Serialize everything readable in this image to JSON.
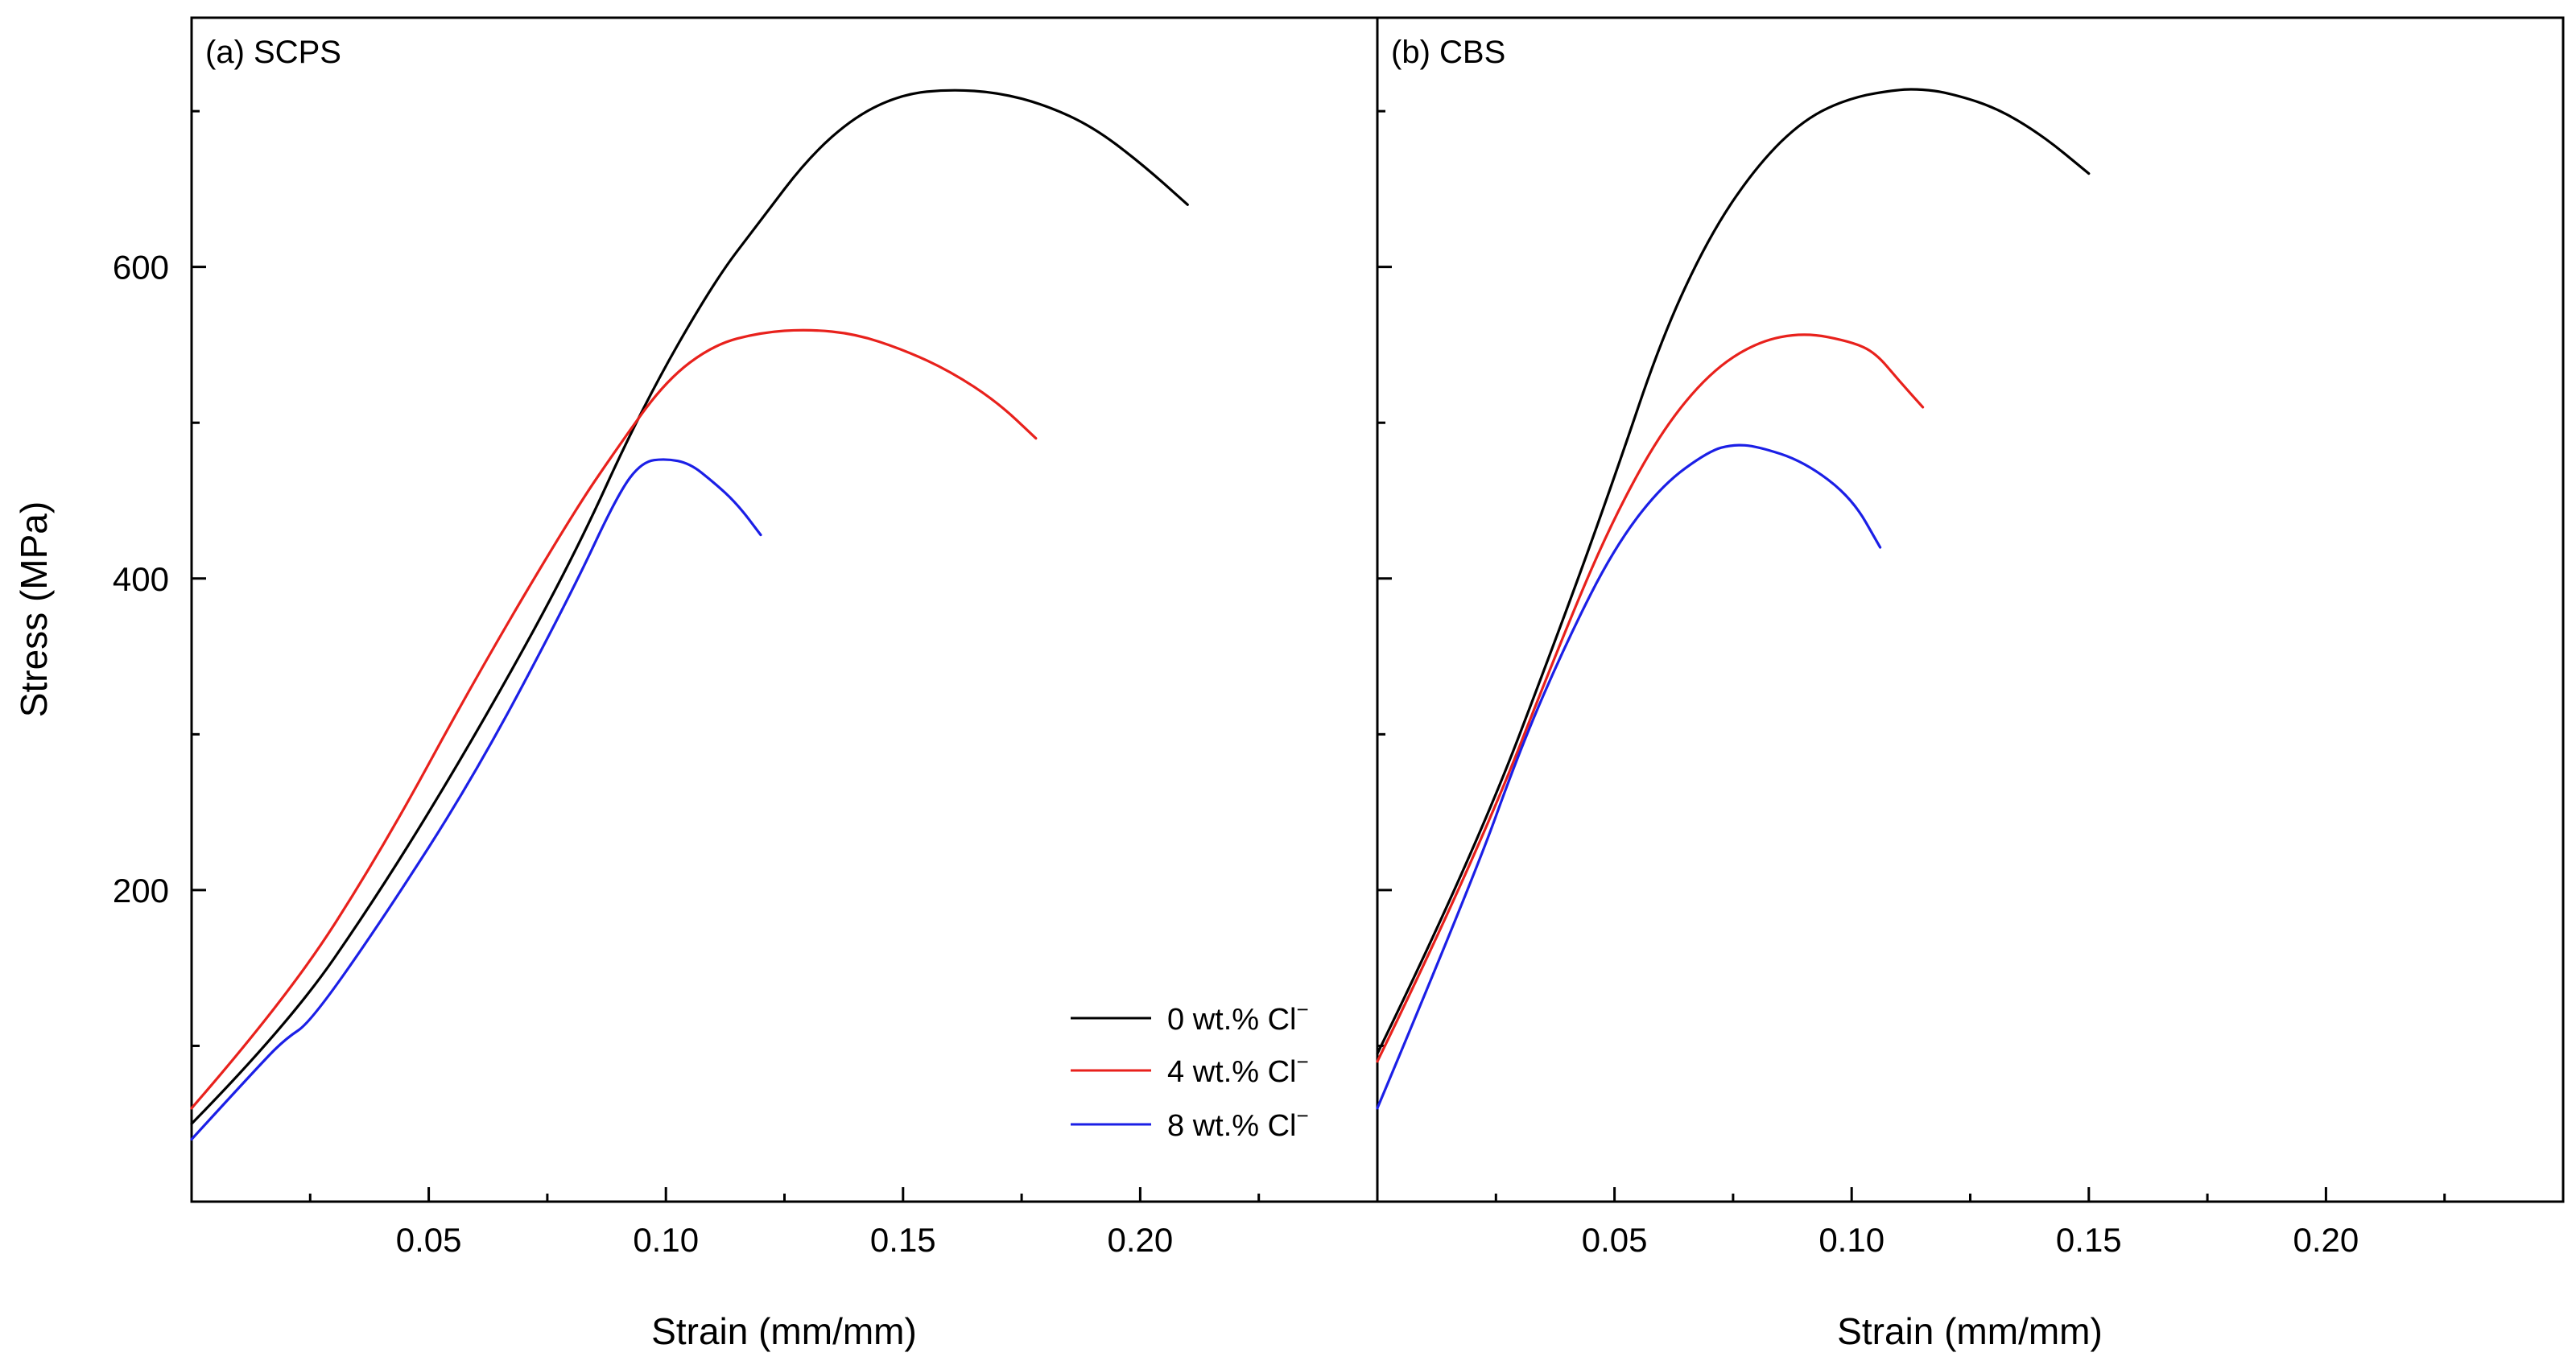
{
  "y_axis": {
    "label": "Stress (MPa)",
    "range": [
      0,
      760
    ],
    "major_ticks": [
      200,
      400,
      600
    ],
    "minor_ticks": [
      100,
      300,
      500,
      700
    ]
  },
  "legend": {
    "placement": "bottom-right of panel (a)",
    "entries": [
      {
        "label": "0 wt.% Cl",
        "sup": "−",
        "color": "#000000"
      },
      {
        "label": "4 wt.% Cl",
        "sup": "−",
        "color": "#e8211c"
      },
      {
        "label": "8 wt.% Cl",
        "sup": "−",
        "color": "#1b1fe6"
      }
    ]
  },
  "chart_data": [
    {
      "type": "line",
      "title": "(a) SCPS",
      "xlabel": "Strain (mm/mm)",
      "ylabel": "Stress (MPa)",
      "xlim": [
        0,
        0.25
      ],
      "ylim": [
        0,
        760
      ],
      "x_ticks": [
        0.05,
        0.1,
        0.15,
        0.2
      ],
      "x_tick_labels": [
        "0.05",
        "0.10",
        "0.15",
        "0.20"
      ],
      "x_minor_ticks": [
        0.025,
        0.075,
        0.125,
        0.175,
        0.225
      ],
      "series": [
        {
          "name": "0 wt.% Cl−",
          "color": "#000000",
          "points": [
            [
              0.0,
              50
            ],
            [
              0.02,
              112
            ],
            [
              0.04,
              200
            ],
            [
              0.06,
              300
            ],
            [
              0.08,
              410
            ],
            [
              0.095,
              510
            ],
            [
              0.11,
              590
            ],
            [
              0.12,
              630
            ],
            [
              0.13,
              670
            ],
            [
              0.14,
              697
            ],
            [
              0.15,
              711
            ],
            [
              0.16,
              714
            ],
            [
              0.17,
              712
            ],
            [
              0.18,
              704
            ],
            [
              0.19,
              690
            ],
            [
              0.2,
              667
            ],
            [
              0.21,
              640
            ]
          ]
        },
        {
          "name": "4 wt.% Cl−",
          "color": "#e8211c",
          "points": [
            [
              0.0,
              60
            ],
            [
              0.02,
              130
            ],
            [
              0.04,
              225
            ],
            [
              0.06,
              337
            ],
            [
              0.08,
              440
            ],
            [
              0.09,
              485
            ],
            [
              0.1,
              527
            ],
            [
              0.11,
              550
            ],
            [
              0.12,
              558
            ],
            [
              0.13,
              560
            ],
            [
              0.14,
              557
            ],
            [
              0.15,
              547
            ],
            [
              0.16,
              533
            ],
            [
              0.17,
              513
            ],
            [
              0.178,
              490
            ]
          ]
        },
        {
          "name": "8 wt.% Cl−",
          "color": "#1b1fe6",
          "points": [
            [
              0.0,
              40
            ],
            [
              0.015,
              90
            ],
            [
              0.02,
              105
            ],
            [
              0.025,
              115
            ],
            [
              0.04,
              180
            ],
            [
              0.06,
              275
            ],
            [
              0.08,
              390
            ],
            [
              0.09,
              455
            ],
            [
              0.095,
              475
            ],
            [
              0.1,
              477
            ],
            [
              0.105,
              474
            ],
            [
              0.11,
              462
            ],
            [
              0.115,
              448
            ],
            [
              0.12,
              428
            ]
          ]
        }
      ]
    },
    {
      "type": "line",
      "title": "(b) CBS",
      "xlabel": "Strain (mm/mm)",
      "ylabel": "",
      "xlim": [
        0,
        0.25
      ],
      "ylim": [
        0,
        760
      ],
      "x_ticks": [
        0.05,
        0.1,
        0.15,
        0.2
      ],
      "x_tick_labels": [
        "0.05",
        "0.10",
        "0.15",
        "0.20"
      ],
      "x_minor_ticks": [
        0.025,
        0.075,
        0.125,
        0.175,
        0.225
      ],
      "series": [
        {
          "name": "0 wt.% Cl−",
          "color": "#000000",
          "points": [
            [
              0.0,
              95
            ],
            [
              0.02,
              220
            ],
            [
              0.04,
              380
            ],
            [
              0.05,
              465
            ],
            [
              0.06,
              555
            ],
            [
              0.07,
              620
            ],
            [
              0.08,
              665
            ],
            [
              0.09,
              695
            ],
            [
              0.1,
              709
            ],
            [
              0.11,
              714
            ],
            [
              0.115,
              714
            ],
            [
              0.12,
              712
            ],
            [
              0.13,
              703
            ],
            [
              0.14,
              685
            ],
            [
              0.15,
              660
            ]
          ]
        },
        {
          "name": "4 wt.% Cl−",
          "color": "#e8211c",
          "points": [
            [
              0.0,
              90
            ],
            [
              0.02,
              215
            ],
            [
              0.04,
              370
            ],
            [
              0.05,
              440
            ],
            [
              0.06,
              495
            ],
            [
              0.07,
              532
            ],
            [
              0.08,
              552
            ],
            [
              0.09,
              558
            ],
            [
              0.1,
              552
            ],
            [
              0.105,
              545
            ],
            [
              0.11,
              527
            ],
            [
              0.115,
              510
            ]
          ]
        },
        {
          "name": "8 wt.% Cl−",
          "color": "#1b1fe6",
          "points": [
            [
              0.0,
              60
            ],
            [
              0.02,
              205
            ],
            [
              0.03,
              290
            ],
            [
              0.04,
              360
            ],
            [
              0.05,
              420
            ],
            [
              0.06,
              460
            ],
            [
              0.07,
              482
            ],
            [
              0.075,
              486
            ],
            [
              0.08,
              485
            ],
            [
              0.09,
              475
            ],
            [
              0.1,
              452
            ],
            [
              0.106,
              420
            ]
          ]
        }
      ]
    }
  ]
}
